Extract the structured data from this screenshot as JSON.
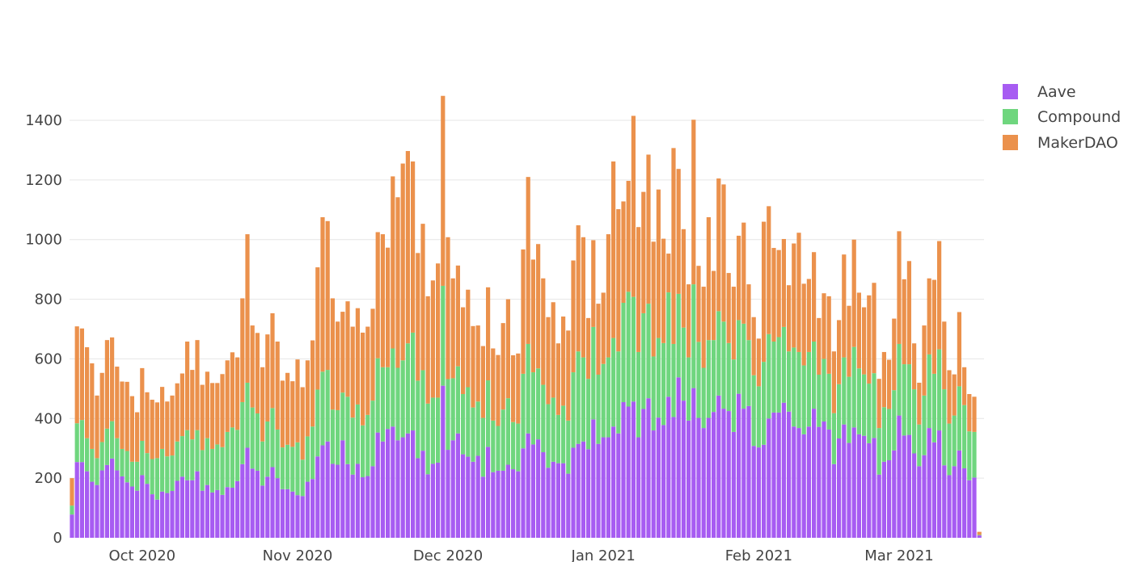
{
  "chart_data": {
    "type": "bar",
    "stacked": true,
    "title": "",
    "xlabel": "",
    "ylabel": "",
    "x_start_date": "2020-09-17",
    "x_step_days": 1,
    "ylim": [
      0,
      1500
    ],
    "y_ticks": [
      0,
      200,
      400,
      600,
      800,
      1000,
      1200,
      1400
    ],
    "y_tick_labels": [
      "0",
      "200",
      "400",
      "600",
      "800",
      "1000",
      "1200",
      "1400"
    ],
    "x_ticks": [
      {
        "date": "2020-10-01",
        "label": "Oct 2020"
      },
      {
        "date": "2020-11-01",
        "label": "Nov 2020"
      },
      {
        "date": "2020-12-01",
        "label": "Dec 2020"
      },
      {
        "date": "2021-01-01",
        "label": "Jan 2021"
      },
      {
        "date": "2021-02-01",
        "label": "Feb 2021"
      },
      {
        "date": "2021-03-01",
        "label": "Mar 2021"
      }
    ],
    "grid": true,
    "legend_position": "right-top",
    "series": [
      {
        "name": "Aave",
        "color": "#a75cf2",
        "values": [
          78,
          254,
          254,
          223,
          188,
          177,
          226,
          244,
          266,
          226,
          206,
          186,
          172,
          158,
          210,
          181,
          146,
          128,
          155,
          150,
          157,
          191,
          205,
          193,
          193,
          223,
          158,
          177,
          152,
          160,
          144,
          170,
          168,
          190,
          247,
          302,
          232,
          225,
          175,
          205,
          237,
          200,
          163,
          163,
          155,
          143,
          140,
          188,
          197,
          273,
          310,
          323,
          248,
          245,
          327,
          247,
          212,
          248,
          203,
          207,
          240,
          353,
          323,
          365,
          373,
          327,
          337,
          350,
          360,
          267,
          292,
          213,
          248,
          252,
          510,
          295,
          327,
          350,
          280,
          272,
          255,
          275,
          205,
          305,
          220,
          225,
          225,
          245,
          230,
          223,
          300,
          350,
          313,
          330,
          287,
          235,
          255,
          250,
          250,
          215,
          302,
          315,
          323,
          297,
          397,
          315,
          337,
          337,
          373,
          350,
          455,
          440,
          457,
          337,
          432,
          468,
          360,
          403,
          378,
          473,
          405,
          538,
          460,
          393,
          502,
          402,
          368,
          402,
          422,
          477,
          433,
          425,
          355,
          483,
          433,
          442,
          308,
          303,
          312,
          400,
          420,
          420,
          453,
          423,
          373,
          368,
          347,
          373,
          433,
          372,
          390,
          363,
          247,
          333,
          380,
          318,
          370,
          347,
          342,
          317,
          335,
          212,
          255,
          260,
          293,
          410,
          343,
          345,
          283,
          240,
          277,
          368,
          320,
          360,
          243,
          210,
          240,
          293,
          233,
          193,
          202,
          8
        ]
      },
      {
        "name": "Compound",
        "color": "#6fd67e",
        "values": [
          30,
          130,
          141,
          111,
          110,
          90,
          95,
          122,
          125,
          108,
          92,
          105,
          83,
          97,
          115,
          103,
          118,
          139,
          143,
          123,
          119,
          132,
          136,
          168,
          137,
          138,
          136,
          157,
          146,
          153,
          160,
          185,
          202,
          172,
          208,
          218,
          205,
          192,
          148,
          185,
          198,
          163,
          140,
          149,
          150,
          177,
          122,
          152,
          176,
          224,
          247,
          240,
          182,
          183,
          160,
          226,
          191,
          199,
          174,
          205,
          220,
          249,
          249,
          207,
          262,
          243,
          258,
          302,
          328,
          260,
          270,
          237,
          222,
          218,
          335,
          237,
          208,
          225,
          202,
          233,
          182,
          182,
          197,
          223,
          173,
          150,
          205,
          223,
          158,
          160,
          250,
          300,
          242,
          238,
          226,
          213,
          215,
          162,
          193,
          178,
          253,
          310,
          282,
          236,
          310,
          232,
          246,
          268,
          297,
          275,
          333,
          385,
          351,
          286,
          321,
          317,
          248,
          267,
          275,
          350,
          245,
          280,
          245,
          212,
          348,
          255,
          202,
          261,
          241,
          283,
          292,
          228,
          243,
          247,
          285,
          221,
          237,
          205,
          278,
          283,
          238,
          253,
          254,
          202,
          265,
          255,
          231,
          250,
          225,
          175,
          210,
          187,
          171,
          182,
          225,
          222,
          270,
          221,
          206,
          200,
          217,
          156,
          183,
          172,
          202,
          240,
          239,
          237,
          215,
          140,
          200,
          247,
          230,
          272,
          255,
          173,
          170,
          215,
          212,
          164,
          153,
          2
        ]
      },
      {
        "name": "MakerDAO",
        "color": "#eb914c",
        "values": [
          92,
          325,
          307,
          305,
          287,
          210,
          232,
          297,
          281,
          240,
          226,
          232,
          220,
          166,
          244,
          204,
          199,
          187,
          208,
          184,
          201,
          195,
          210,
          297,
          233,
          302,
          219,
          223,
          221,
          206,
          245,
          240,
          252,
          243,
          348,
          498,
          275,
          270,
          249,
          292,
          318,
          295,
          224,
          241,
          220,
          278,
          243,
          255,
          289,
          410,
          518,
          499,
          373,
          297,
          271,
          320,
          305,
          323,
          311,
          296,
          308,
          423,
          446,
          401,
          577,
          572,
          660,
          645,
          574,
          428,
          491,
          360,
          393,
          450,
          637,
          476,
          335,
          338,
          291,
          327,
          273,
          255,
          241,
          312,
          242,
          238,
          290,
          332,
          224,
          235,
          417,
          560,
          378,
          417,
          357,
          292,
          320,
          240,
          299,
          302,
          375,
          423,
          403,
          204,
          291,
          238,
          239,
          413,
          592,
          477,
          340,
          372,
          607,
          419,
          407,
          500,
          385,
          498,
          350,
          130,
          657,
          419,
          330,
          245,
          552,
          255,
          272,
          412,
          232,
          445,
          460,
          235,
          244,
          283,
          339,
          187,
          195,
          160,
          470,
          429,
          314,
          292,
          295,
          222,
          349,
          400,
          274,
          245,
          300,
          190,
          220,
          260,
          207,
          215,
          345,
          238,
          360,
          254,
          225,
          296,
          303,
          165,
          185,
          165,
          240,
          378,
          285,
          346,
          154,
          140,
          235,
          255,
          315,
          363,
          227,
          179,
          138,
          249,
          127,
          125,
          118,
          10
        ]
      }
    ]
  }
}
